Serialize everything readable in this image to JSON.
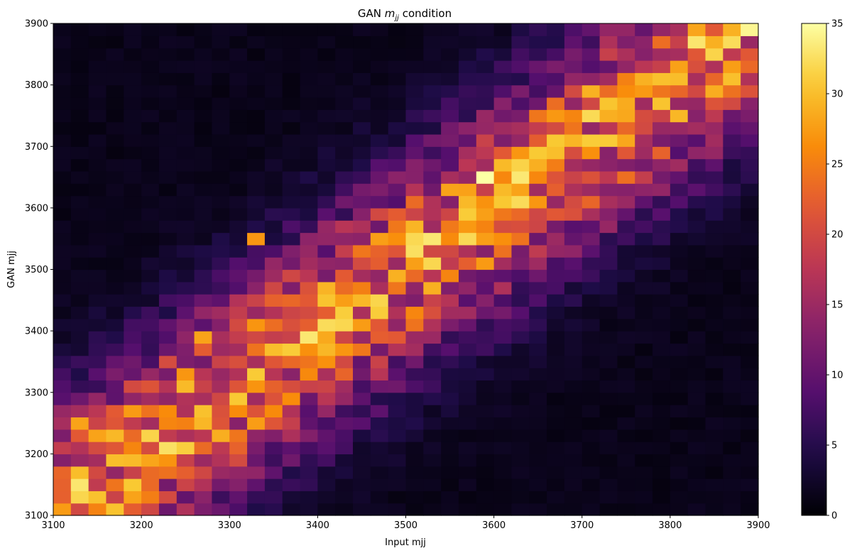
{
  "chart_data": {
    "type": "heatmap",
    "title_parts": [
      "GAN ",
      "m",
      "jj",
      " condition"
    ],
    "xlabel": "Input mjj",
    "ylabel": "GAN mjj",
    "xlim": [
      3100,
      3900
    ],
    "ylim": [
      3100,
      3900
    ],
    "bins": 40,
    "bin_width": 20,
    "xticks": [
      3100,
      3200,
      3300,
      3400,
      3500,
      3600,
      3700,
      3800,
      3900
    ],
    "yticks": [
      3100,
      3200,
      3300,
      3400,
      3500,
      3600,
      3700,
      3800,
      3900
    ],
    "colormap": "inferno",
    "colorbar": {
      "min": 0,
      "max": 35,
      "ticks": [
        0,
        5,
        10,
        15,
        20,
        25,
        30,
        35
      ]
    },
    "model": {
      "band_width": 165,
      "peak_max": 24,
      "floor": 1.5,
      "hotspots": [
        {
          "x": 3590,
          "y": 3650,
          "value": 35
        },
        {
          "x": 3830,
          "y": 3870,
          "value": 33
        },
        {
          "x": 3470,
          "y": 3440,
          "value": 32
        },
        {
          "x": 3730,
          "y": 3710,
          "value": 31
        },
        {
          "x": 3170,
          "y": 3190,
          "value": 30
        },
        {
          "x": 3490,
          "y": 3490,
          "value": 29
        },
        {
          "x": 3710,
          "y": 3790,
          "value": 29
        },
        {
          "x": 3870,
          "y": 3890,
          "value": 29
        },
        {
          "x": 3270,
          "y": 3390,
          "value": 28
        },
        {
          "x": 3150,
          "y": 3230,
          "value": 28
        },
        {
          "x": 3550,
          "y": 3630,
          "value": 28
        },
        {
          "x": 3330,
          "y": 3550,
          "value": 27
        },
        {
          "x": 3250,
          "y": 3330,
          "value": 27
        },
        {
          "x": 3130,
          "y": 3250,
          "value": 28
        },
        {
          "x": 3190,
          "y": 3130,
          "value": 28
        },
        {
          "x": 3650,
          "y": 3610,
          "value": 27
        },
        {
          "x": 3630,
          "y": 3690,
          "value": 27
        },
        {
          "x": 3430,
          "y": 3370,
          "value": 27
        }
      ]
    }
  }
}
